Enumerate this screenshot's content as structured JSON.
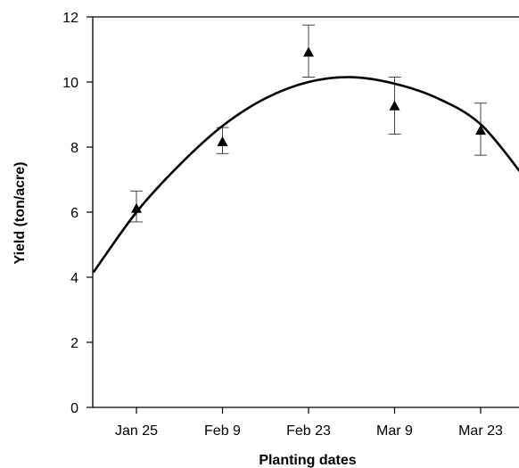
{
  "chart_data": {
    "type": "scatter",
    "title": "",
    "xlabel": "Planting dates",
    "ylabel": "Yield (ton/acre)",
    "categories": [
      "Jan 25",
      "Feb 9",
      "Feb 23",
      "Mar 9",
      "Mar 23"
    ],
    "ylim": [
      0,
      12
    ],
    "yticks": [
      0,
      2,
      4,
      6,
      8,
      10,
      12
    ],
    "grid": false,
    "legend": "none",
    "series": [
      {
        "marker": "triangle",
        "values": [
          6.1,
          8.15,
          10.9,
          9.25,
          8.5
        ],
        "error_low": [
          5.7,
          7.8,
          10.15,
          8.4,
          7.75
        ],
        "error_high": [
          6.65,
          8.6,
          11.75,
          10.15,
          9.35
        ]
      }
    ],
    "fit_curve": {
      "type": "quadratic",
      "x": [
        -0.5,
        0,
        0.5,
        1,
        1.5,
        2,
        2.5,
        3,
        3.5,
        4,
        4.5
      ],
      "y": [
        4.15,
        6.0,
        7.45,
        8.65,
        9.5,
        10.0,
        10.15,
        9.95,
        9.5,
        8.7,
        7.1
      ]
    },
    "colors": {
      "marker": "#000000",
      "curve": "#000000",
      "axis": "#000000"
    }
  }
}
